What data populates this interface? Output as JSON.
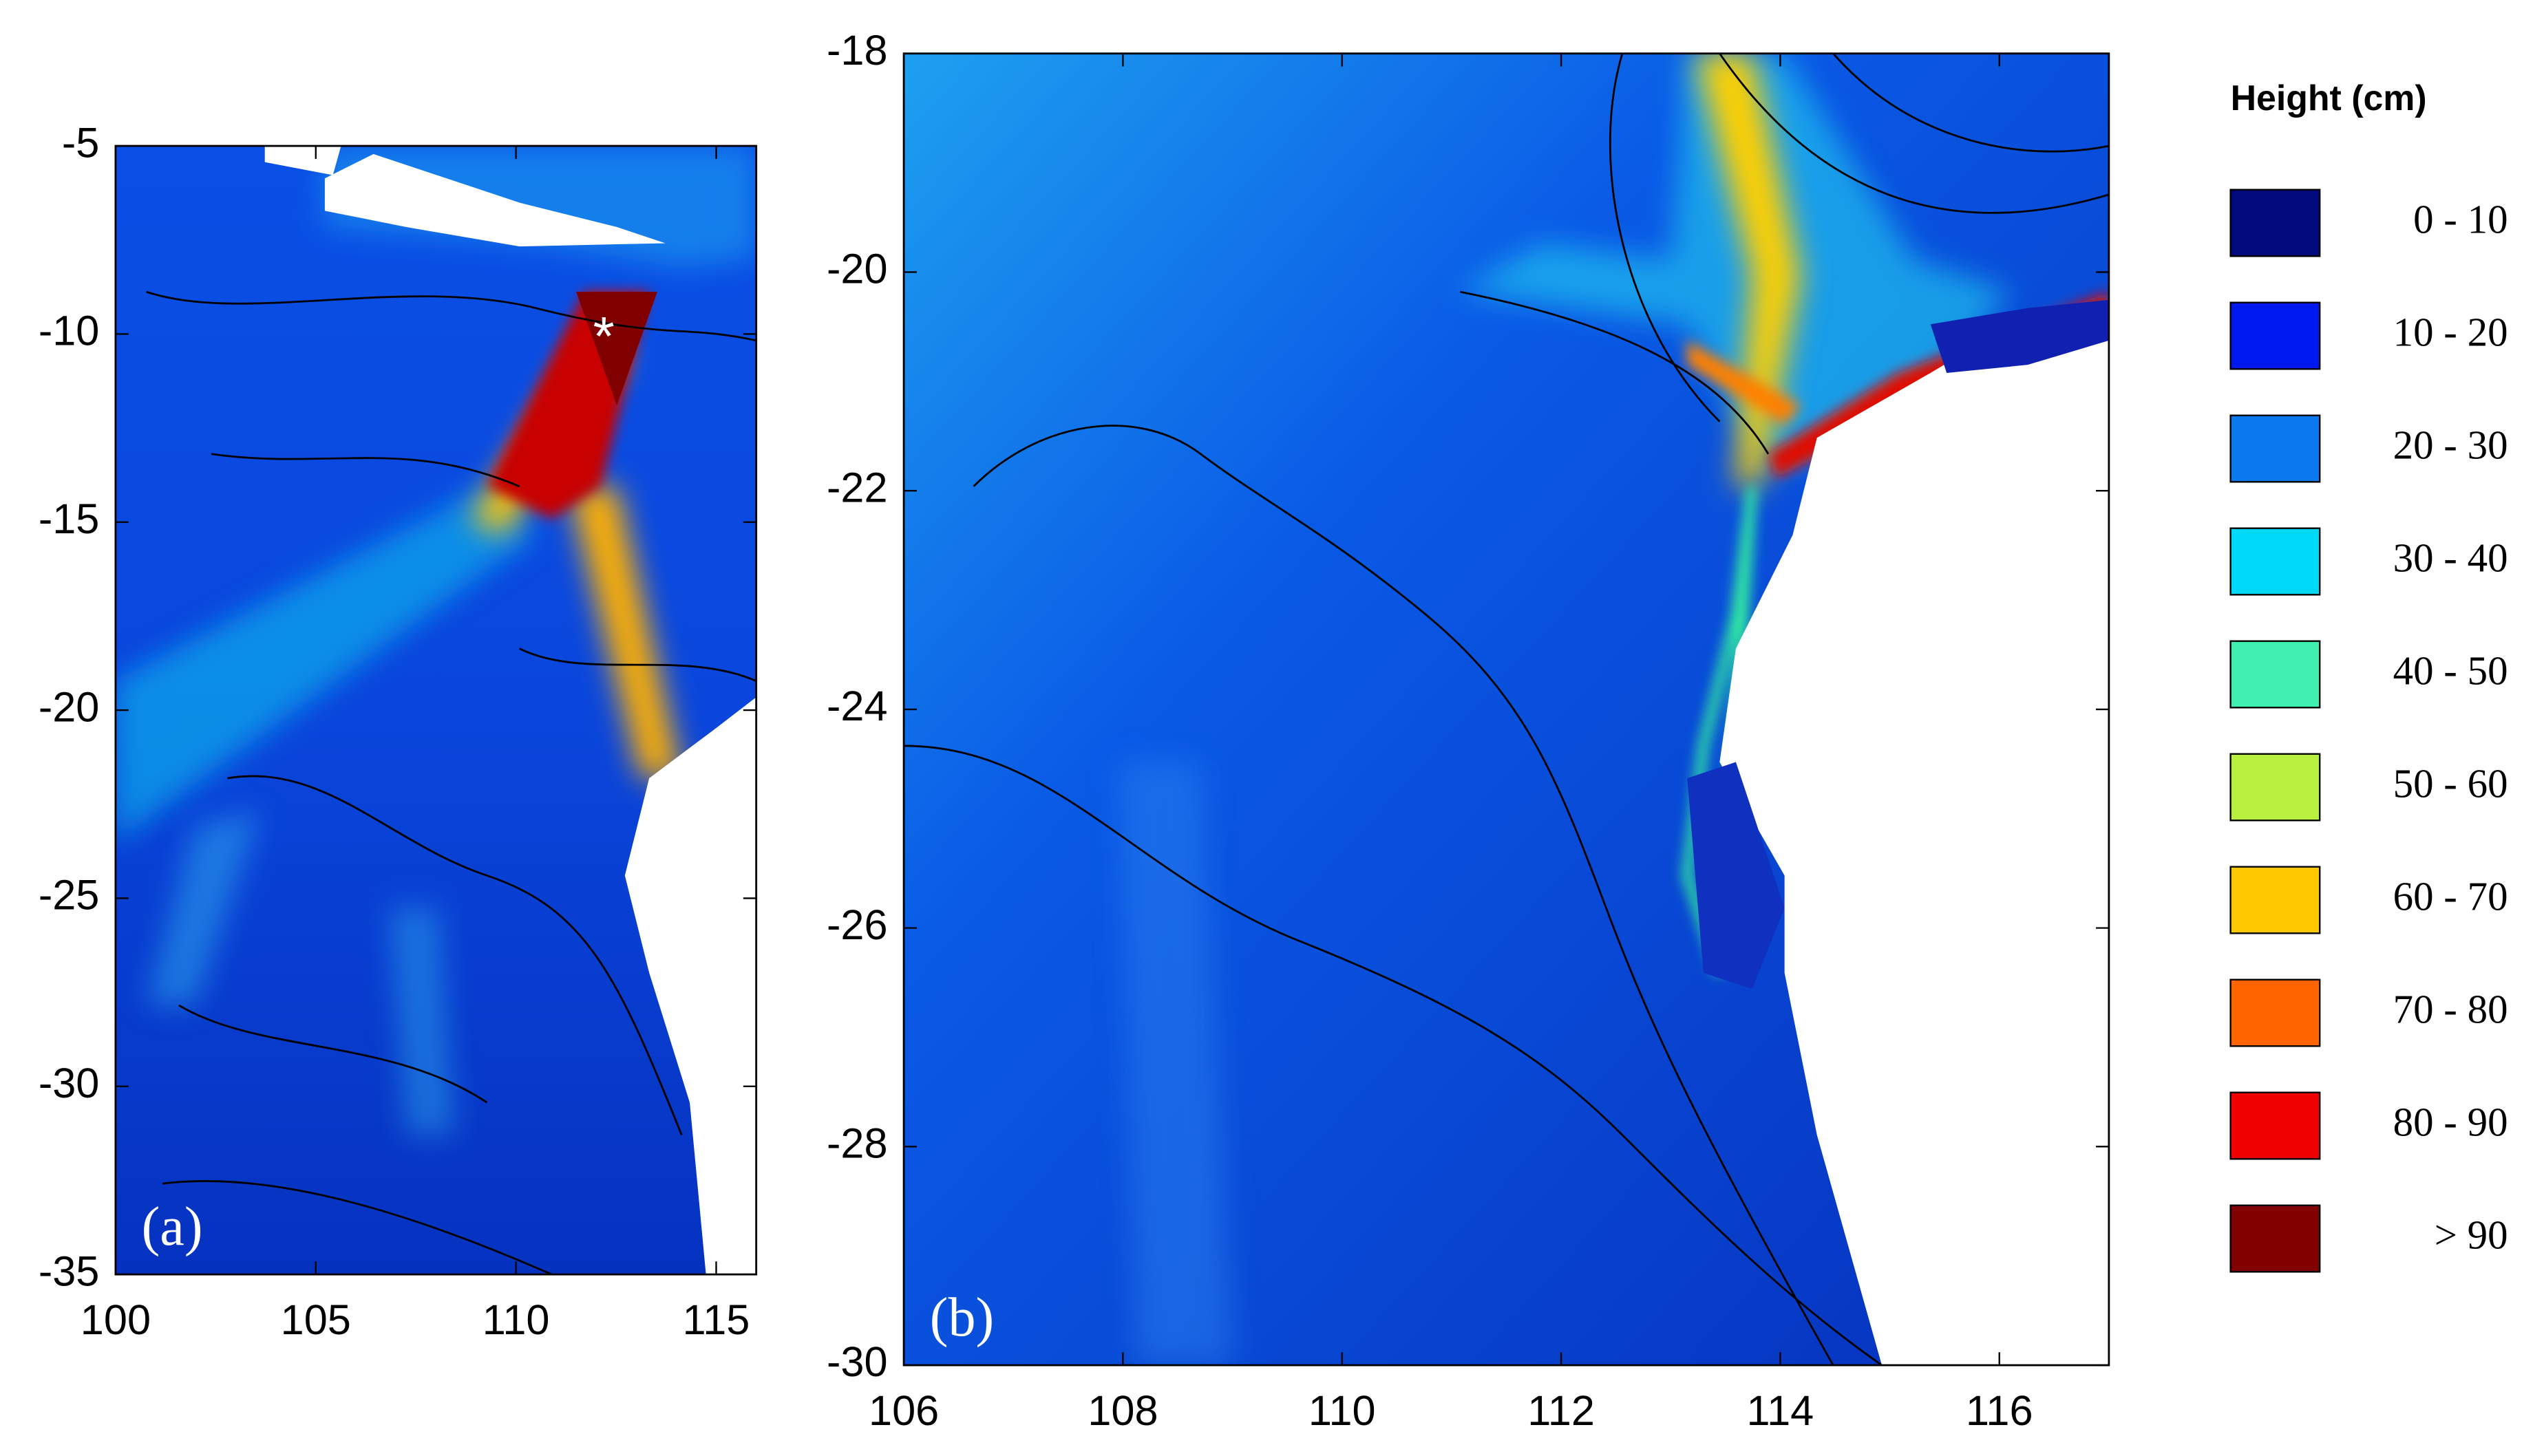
{
  "panels": [
    {
      "label": "(a)",
      "xlim": [
        100,
        116
      ],
      "ylim": [
        -35,
        -5
      ],
      "xticks": [
        100,
        105,
        110,
        115
      ],
      "yticks": [
        -5,
        -10,
        -15,
        -20,
        -25,
        -30,
        -35
      ]
    },
    {
      "label": "(b)",
      "xlim": [
        106,
        117
      ],
      "ylim": [
        -30,
        -18
      ],
      "xticks": [
        106,
        108,
        110,
        112,
        114,
        116
      ],
      "yticks": [
        -18,
        -20,
        -22,
        -24,
        -26,
        -28,
        -30
      ]
    }
  ],
  "legend": {
    "title": "Height (cm)",
    "items": [
      {
        "label": "0 - 10",
        "color": "#000a7a"
      },
      {
        "label": "10 - 20",
        "color": "#0018f0"
      },
      {
        "label": "20 - 30",
        "color": "#0a78ee"
      },
      {
        "label": "30 - 40",
        "color": "#00d8f8"
      },
      {
        "label": "40 - 50",
        "color": "#40f0b0"
      },
      {
        "label": "50 - 60",
        "color": "#b8f040"
      },
      {
        "label": "60 - 70",
        "color": "#ffc800"
      },
      {
        "label": "70 - 80",
        "color": "#ff6400"
      },
      {
        "label": "80 - 90",
        "color": "#f00000"
      },
      {
        "label": "> 90",
        "color": "#800000"
      }
    ]
  }
}
